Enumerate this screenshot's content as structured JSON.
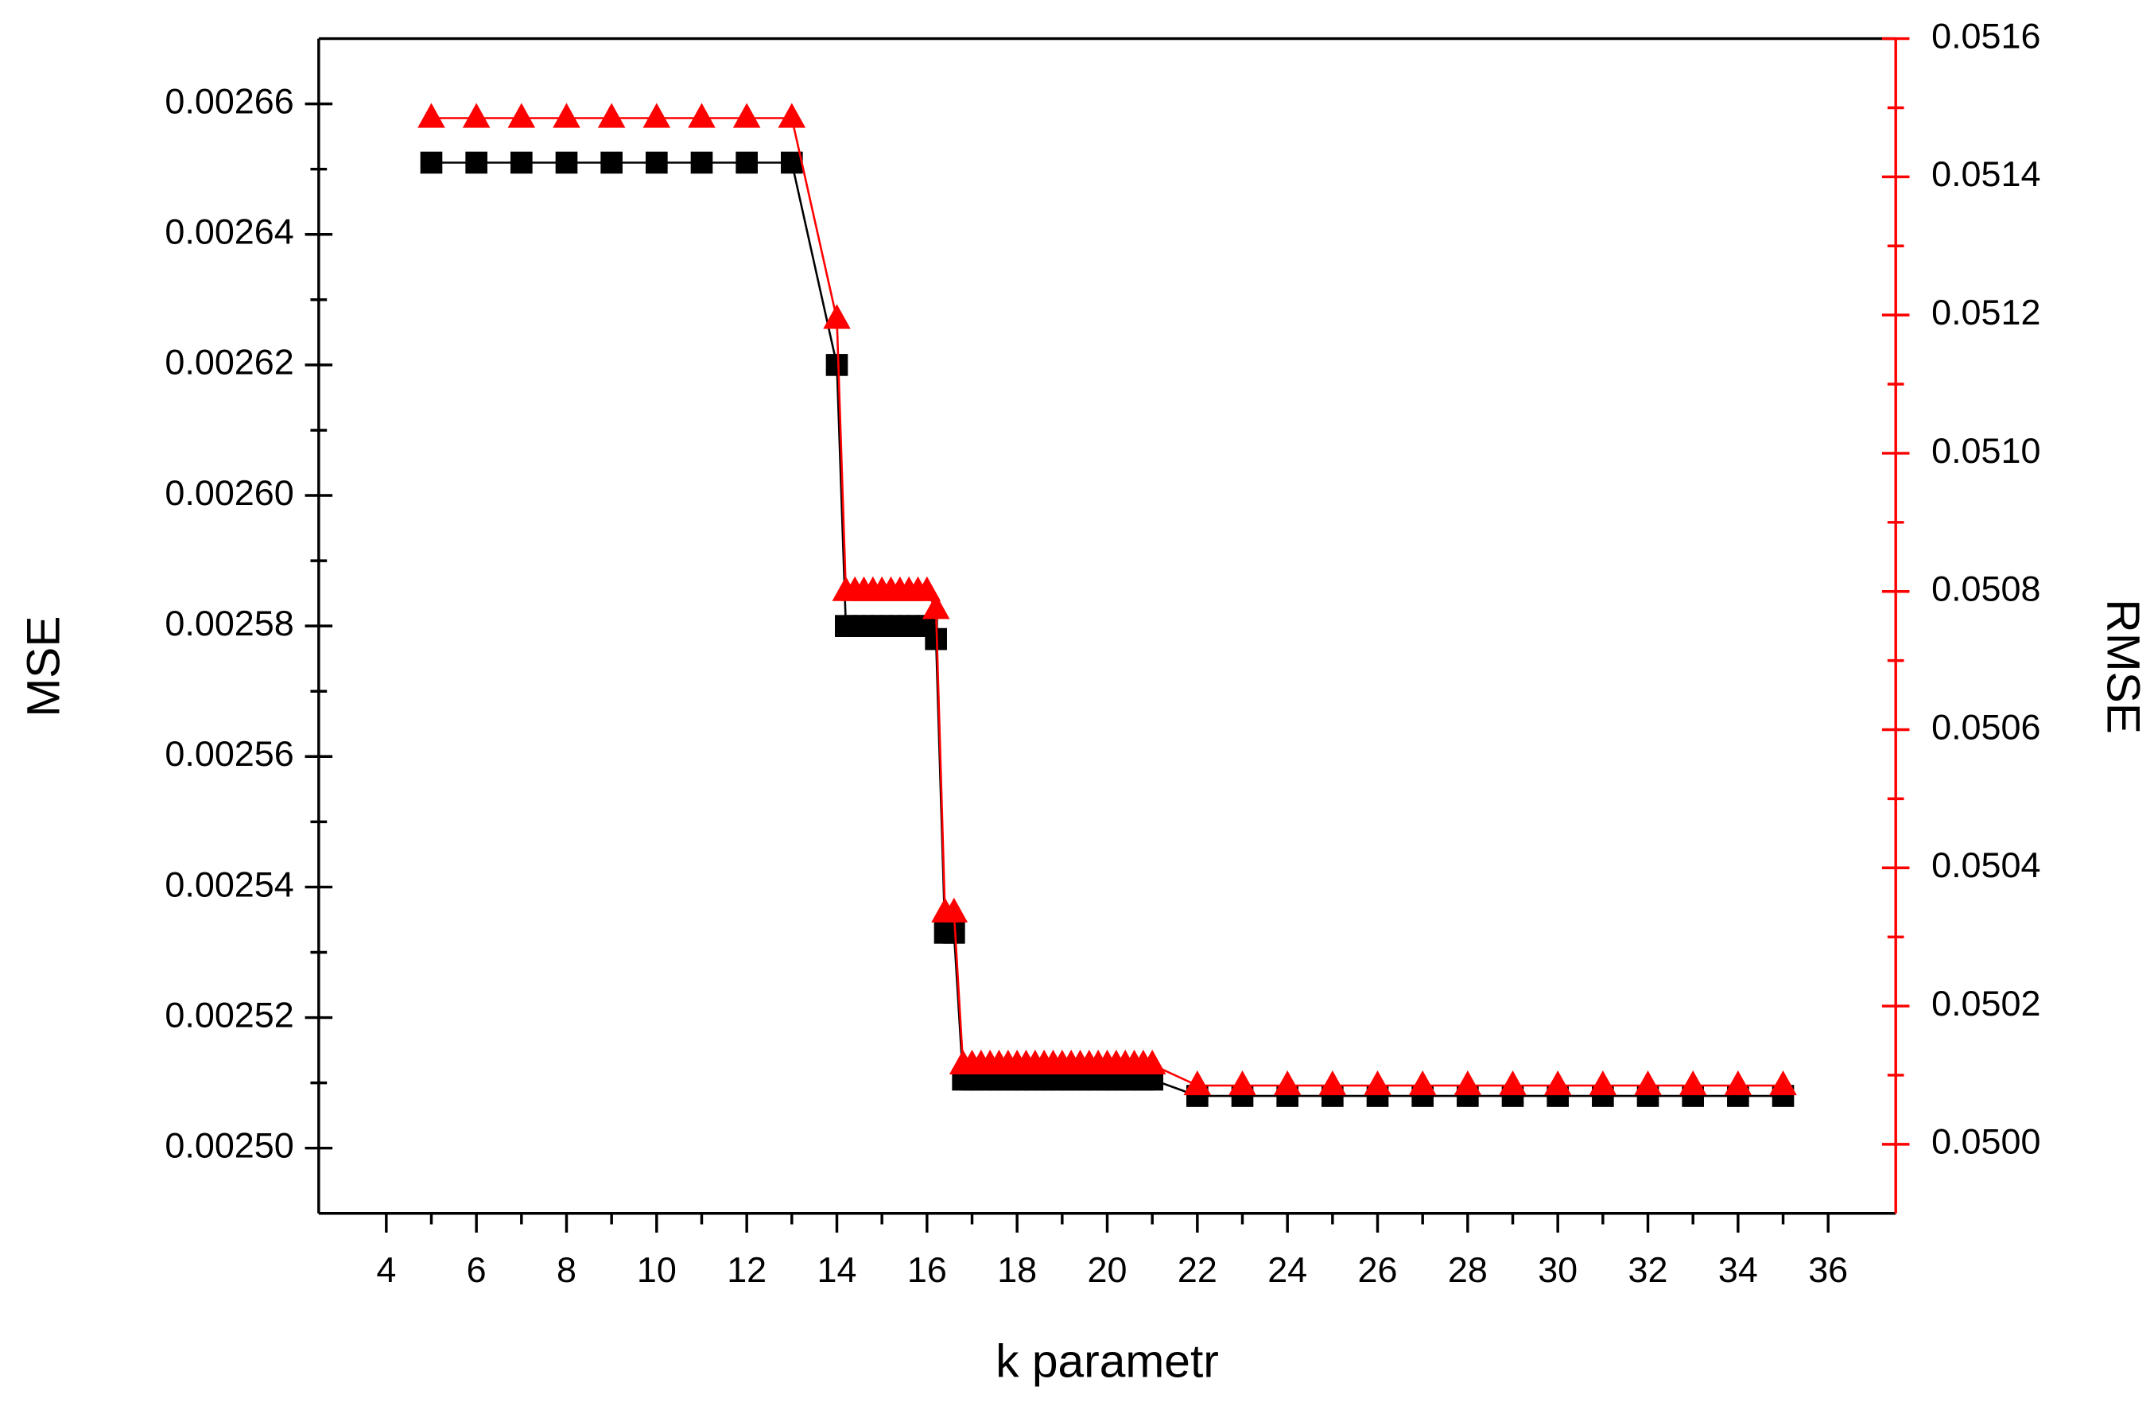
{
  "chart_data": {
    "type": "line",
    "x_label": "k parametr",
    "y_label": "MSE",
    "y2_label": "RMSE",
    "x": [
      5,
      6,
      7,
      8,
      9,
      10,
      11,
      12,
      13,
      14,
      14.2,
      14.4,
      14.6,
      14.8,
      15,
      15.2,
      15.4,
      15.6,
      15.8,
      16,
      16.2,
      16.4,
      16.6,
      16.8,
      17,
      17.2,
      17.4,
      17.6,
      17.8,
      18,
      18.2,
      18.4,
      18.6,
      18.8,
      19,
      19.2,
      19.4,
      19.6,
      19.8,
      20,
      20.2,
      20.4,
      20.6,
      20.8,
      21,
      22,
      23,
      24,
      25,
      26,
      27,
      28,
      29,
      30,
      31,
      32,
      33,
      34,
      35
    ],
    "series": [
      {
        "color": "#000000",
        "marker": "square",
        "values": [
          0.002651,
          0.002651,
          0.002651,
          0.002651,
          0.002651,
          0.002651,
          0.002651,
          0.002651,
          0.002651,
          0.00262,
          0.00258,
          0.00258,
          0.00258,
          0.00258,
          0.00258,
          0.00258,
          0.00258,
          0.00258,
          0.00258,
          0.00258,
          0.002578,
          0.002533,
          0.002533,
          0.0025105,
          0.0025105,
          0.0025105,
          0.0025105,
          0.0025105,
          0.0025105,
          0.0025105,
          0.0025105,
          0.0025105,
          0.0025105,
          0.0025105,
          0.0025105,
          0.0025105,
          0.0025105,
          0.0025105,
          0.0025105,
          0.0025105,
          0.0025105,
          0.0025105,
          0.0025105,
          0.0025105,
          0.0025105,
          0.002508,
          0.002508,
          0.002508,
          0.002508,
          0.002508,
          0.002508,
          0.002508,
          0.002508,
          0.002508,
          0.002508,
          0.002508,
          0.002508,
          0.002508,
          0.002508
        ]
      },
      {
        "color": "#ff0000",
        "marker": "triangle",
        "axis": "y2",
        "values": [
          0.051485,
          0.051485,
          0.051485,
          0.051485,
          0.051485,
          0.051485,
          0.051485,
          0.051485,
          0.051485,
          0.051194,
          0.0508,
          0.0508,
          0.0508,
          0.0508,
          0.0508,
          0.0508,
          0.0508,
          0.0508,
          0.0508,
          0.0508,
          0.050774,
          0.050335,
          0.050335,
          0.050115,
          0.050115,
          0.050115,
          0.050115,
          0.050115,
          0.050115,
          0.050115,
          0.050115,
          0.050115,
          0.050115,
          0.050115,
          0.050115,
          0.050115,
          0.050115,
          0.050115,
          0.050115,
          0.050115,
          0.050115,
          0.050115,
          0.050115,
          0.050115,
          0.050115,
          0.050085,
          0.050085,
          0.050085,
          0.050085,
          0.050085,
          0.050085,
          0.050085,
          0.050085,
          0.050085,
          0.050085,
          0.050085,
          0.050085,
          0.050085,
          0.050085
        ]
      }
    ],
    "xlim": [
      2.5,
      37.5
    ],
    "xticks": [
      4,
      6,
      8,
      10,
      12,
      14,
      16,
      18,
      20,
      22,
      24,
      26,
      28,
      30,
      32,
      34,
      36
    ],
    "ylim": [
      0.00249,
      0.00267
    ],
    "yticks": [
      {
        "value": 0.0025,
        "label": "0.00250"
      },
      0.00252,
      0.00254,
      0.00256,
      0.00258,
      {
        "value": 0.0026,
        "label": "0.00260"
      },
      0.00262,
      0.00264,
      0.00266
    ],
    "y2lim": [
      0.0499,
      0.0516
    ],
    "y2ticks": [
      {
        "value": 0.05,
        "label": "0.0500"
      },
      0.0502,
      0.0504,
      0.0506,
      0.0508,
      {
        "value": 0.051,
        "label": "0.0510"
      },
      0.0512,
      0.0514,
      0.0516
    ],
    "y2color": "#ff0000"
  }
}
